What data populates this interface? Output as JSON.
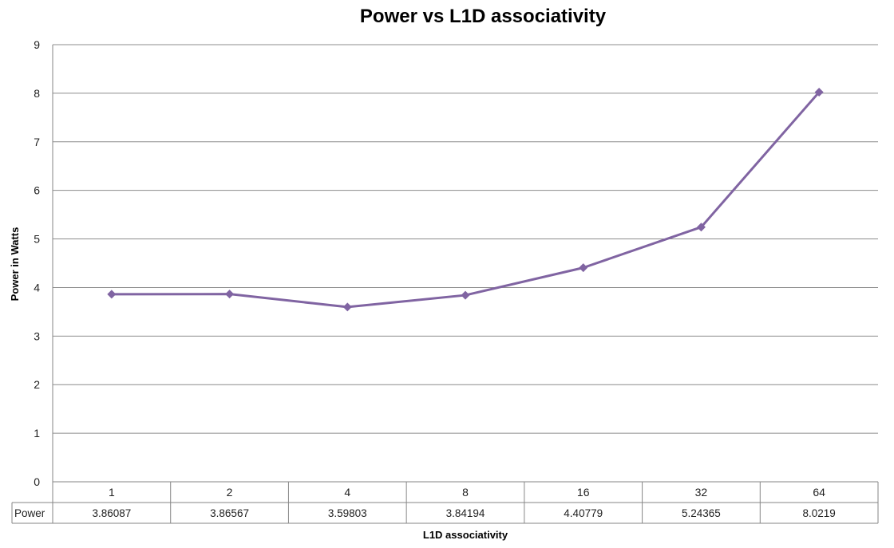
{
  "chart_data": {
    "type": "line",
    "title": "Power vs L1D associativity",
    "xlabel": "L1D associativity",
    "ylabel": "Power in Watts",
    "categories": [
      "1",
      "2",
      "4",
      "8",
      "16",
      "32",
      "64"
    ],
    "series": [
      {
        "name": "Power",
        "values": [
          3.86087,
          3.86567,
          3.59803,
          3.84194,
          4.40779,
          5.24365,
          8.0219
        ],
        "labels": [
          "3.86087",
          "3.86567",
          "3.59803",
          "3.84194",
          "4.40779",
          "5.24365",
          "8.0219"
        ],
        "color": "#8064a2",
        "marker": "diamond"
      }
    ],
    "ylim": [
      0,
      9
    ],
    "yticks": [
      "0",
      "1",
      "2",
      "3",
      "4",
      "5",
      "6",
      "7",
      "8",
      "9"
    ],
    "grid": true,
    "legend": "data-table"
  },
  "colors": {
    "series": "#8064a2",
    "grid": "#8c8c8c",
    "axis": "#868686"
  }
}
